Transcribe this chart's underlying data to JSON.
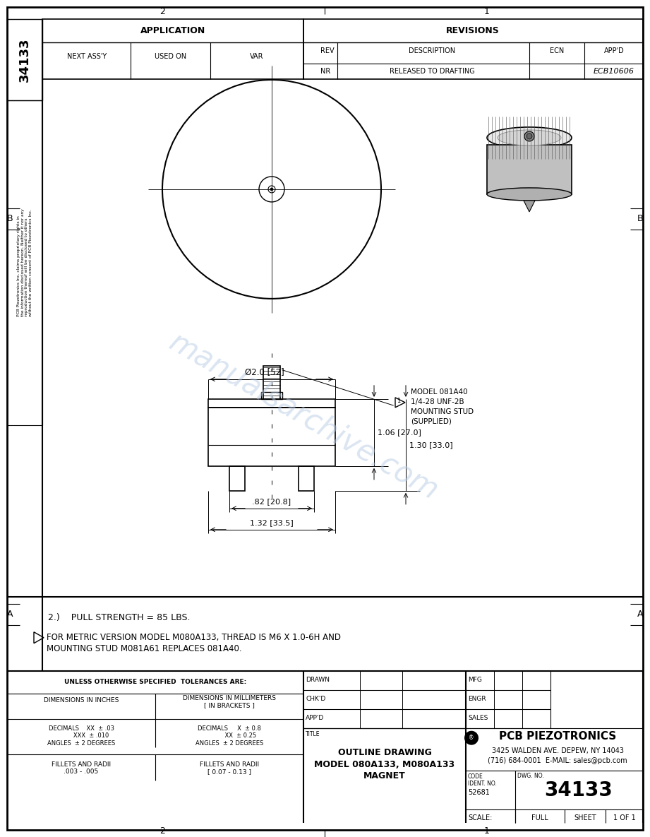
{
  "bg_color": "#ffffff",
  "title_line1": "OUTLINE DRAWING",
  "title_line2": "MODEL 080A133, M080A133",
  "title_line3": "MAGNET",
  "dwg_no": "34133",
  "scale": "FULL",
  "sheet": "1 OF 1",
  "code_ident": "52681",
  "company": "PCB PIEZOTRONICS",
  "address": "3425 WALDEN AVE. DEPEW, NY 14043",
  "phone": "(716) 684-0001  E-MAIL: sales@pcb.com",
  "rev_description": "RELEASED TO DRAFTING",
  "rev_nr": "NR",
  "rev_appd": "ECB10606",
  "dim1": "Ø2.0 [52]",
  "dim2": "1.06 [27.0]",
  "dim3": "1.30 [33.0]",
  "dim4": ".82 [20.8]",
  "dim5": "1.32 [33.5]",
  "model_label_line1": "MODEL 081A40",
  "model_label_line2": "1/4-28 UNF-2B",
  "model_label_line3": "MOUNTING STUD",
  "model_label_line4": "(SUPPLIED)",
  "note1": "2.)    PULL STRENGTH = 85 LBS.",
  "note2_line1": "FOR METRIC VERSION MODEL M080A133, THREAD IS M6 X 1.0-6H AND",
  "note2_line2": "MOUNTING STUD M081A61 REPLACES 081A40.",
  "watermark": "manualsarchive.com",
  "col2": "2",
  "col1": "1",
  "row_b": "B",
  "row_a": "A",
  "application": "APPLICATION",
  "next_assy": "NEXT ASS'Y",
  "used_on": "USED ON",
  "var": "VAR",
  "revisions": "REVISIONS",
  "rev": "REV",
  "description": "DESCRIPTION",
  "ecn": "ECN",
  "appd": "APP'D",
  "tolerances_hdr": "UNLESS OTHERWISE SPECIFIED  TOLERANCES ARE:",
  "tol_inches_hdr": "DIMENSIONS IN INCHES",
  "tol_mm_hdr": "DIMENSIONS IN MILLIMETERS\n[ IN BRACKETS ]",
  "tol_dec_in": "DECIMALS    XX  ± .03\n           XXX  ± .010\nANGLES  ± 2 DEGREES",
  "tol_dec_mm": "DECIMALS     X  ± 0.8\n            XX  ± 0.25\nANGLES  ± 2 DEGREES",
  "fillets_in": "FILLETS AND RADII\n.003 - .005",
  "fillets_mm": "FILLETS AND RADII\n[ 0.07 - 0.13 ]",
  "drawn_lbl": "DRAWN",
  "chkd_lbl": "CHK'D",
  "appd_lbl": "APP'D",
  "mfg_lbl": "MFG",
  "engr_lbl": "ENGR",
  "sales_lbl": "SALES",
  "title_lbl": "TITLE",
  "code_lbl": "CODE",
  "ident_lbl": "IDENT. NO.",
  "dwgno_lbl": "DWG. NO.",
  "scale_lbl": "SCALE:",
  "sheet_lbl": "SHEET"
}
